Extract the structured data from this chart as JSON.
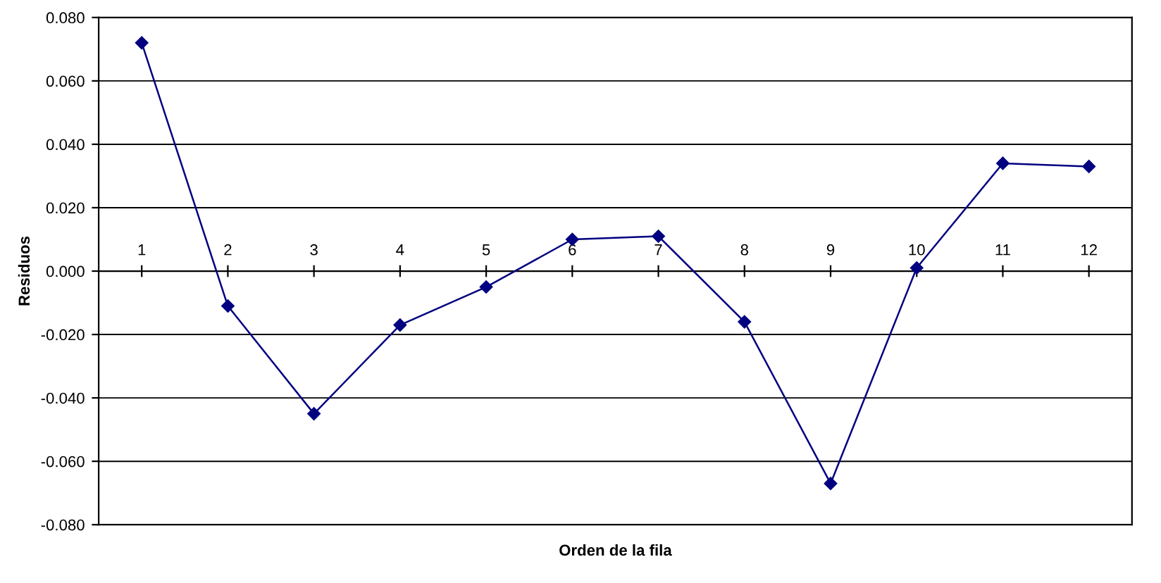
{
  "chart_data": {
    "type": "line",
    "xlabel": "Orden de la fila",
    "ylabel": "Residuos",
    "categories": [
      "1",
      "2",
      "3",
      "4",
      "5",
      "6",
      "7",
      "8",
      "9",
      "10",
      "11",
      "12"
    ],
    "series": [
      {
        "color": "#000080",
        "values": [
          0.072,
          -0.011,
          -0.045,
          -0.017,
          -0.005,
          0.01,
          0.011,
          -0.016,
          -0.067,
          0.001,
          0.034,
          0.033
        ]
      }
    ],
    "ylim": [
      -0.08,
      0.08
    ],
    "yticks": [
      {
        "value": -0.08,
        "label": "-0.080"
      },
      {
        "value": -0.06,
        "label": "-0.060"
      },
      {
        "value": -0.04,
        "label": "-0.040"
      },
      {
        "value": -0.02,
        "label": "-0.020"
      },
      {
        "value": 0,
        "label": "0.000"
      },
      {
        "value": 0.02,
        "label": "0.020"
      },
      {
        "value": 0.04,
        "label": "0.040"
      },
      {
        "value": 0.06,
        "label": "0.060"
      },
      {
        "value": 0.08,
        "label": "0.080"
      }
    ],
    "grid": "y",
    "marker": "diamond",
    "line_style": "solid"
  }
}
